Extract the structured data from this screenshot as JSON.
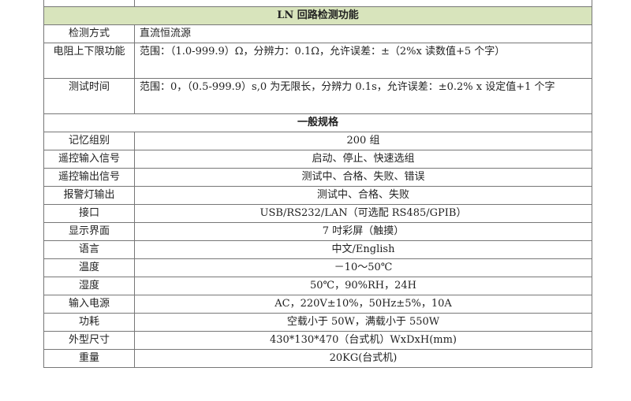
{
  "ln_section": {
    "title": "LN 回路检测功能",
    "rows": [
      {
        "label": "检测方式",
        "value": "直流恒流源"
      },
      {
        "label": "电阻上下限功能",
        "value": "范围：（1.0-999.9）Ω，分辨力：0.1Ω，允许误差：±（2%x 读数值+5 个字）"
      },
      {
        "label": "测试时间",
        "value": "范围：0，（0.5-999.9）s,0 为无限长，分辨力 0.1s，允许误差：±0.2% x 设定值+1 个字"
      }
    ]
  },
  "general_section": {
    "title": "一般规格",
    "rows": [
      {
        "label": "记忆组别",
        "value": "200 组"
      },
      {
        "label": "遥控输入信号",
        "value": "启动、停止、快速选组"
      },
      {
        "label": "遥控输出信号",
        "value": "测试中、合格、失败、错误"
      },
      {
        "label": "报警灯输出",
        "value": "测试中、合格、失败"
      },
      {
        "label": "接口",
        "value": "USB/RS232/LAN（可选配 RS485/GPIB）"
      },
      {
        "label": "显示界面",
        "value": "7 吋彩屏（触摸）"
      },
      {
        "label": "语言",
        "value": "中文/English"
      },
      {
        "label": "温度",
        "value": "－10～50℃"
      },
      {
        "label": "湿度",
        "value": "50℃，90%RH，24H"
      },
      {
        "label": "输入电源",
        "value": "AC，220V±10%，50Hz±5%，10A"
      },
      {
        "label": "功耗",
        "value": "空载小于 50W，满载小于 550W"
      },
      {
        "label": "外型尺寸",
        "value": "430*130*470（台式机）WxDxH(mm)"
      },
      {
        "label": "重量",
        "value": "20KG(台式机)"
      }
    ]
  },
  "colors": {
    "section_header_bg": "#d8e4bc"
  }
}
